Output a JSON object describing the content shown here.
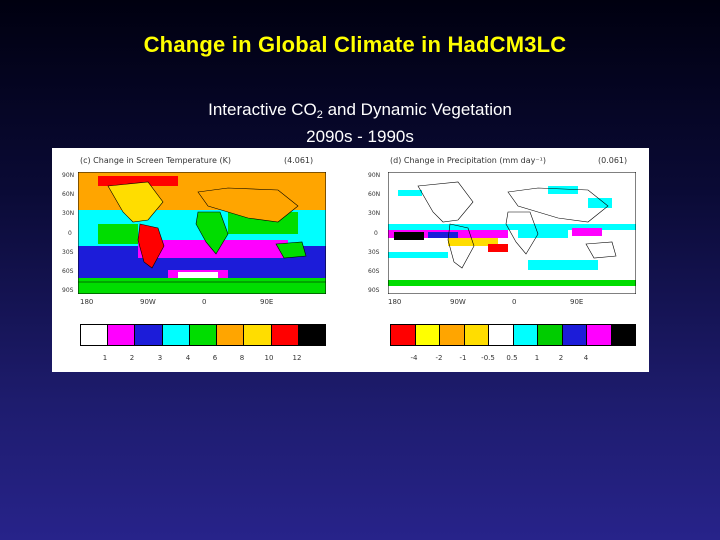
{
  "slide": {
    "title": "Change in Global Climate in HadCM3LC",
    "subtitle_pre": "Interactive CO",
    "subtitle_sub": "2",
    "subtitle_post": " and Dynamic Vegetation",
    "period": "2090s - 1990s"
  },
  "left_map": {
    "label": "(c) Change in Screen Temperature (K)",
    "mean": "(4.061)",
    "lat_ticks": [
      "90N",
      "60N",
      "30N",
      "0",
      "30S",
      "60S",
      "90S"
    ],
    "lon_ticks": [
      "180",
      "90W",
      "0",
      "90E"
    ],
    "colorbar": [
      "#ffffff",
      "#ff00ff",
      "#1c1cd9",
      "#00ffff",
      "#00dd00",
      "#ffa500",
      "#ffdd00",
      "#ff0000",
      "#000000"
    ],
    "colorbar_ticks": [
      "1",
      "2",
      "3",
      "4",
      "6",
      "8",
      "10",
      "12"
    ]
  },
  "right_map": {
    "label": "(d) Change in Precipitation (mm day⁻¹)",
    "mean": "(0.061)",
    "lat_ticks": [
      "90N",
      "60N",
      "30N",
      "0",
      "30S",
      "60S",
      "90S"
    ],
    "lon_ticks": [
      "180",
      "90W",
      "0",
      "90E"
    ],
    "colorbar": [
      "#ff0000",
      "#ffff00",
      "#ffa500",
      "#ffdd00",
      "#ffffff",
      "#00ffff",
      "#00cc00",
      "#1c1cd9",
      "#ff00ff",
      "#000000"
    ],
    "colorbar_ticks": [
      "-4",
      "-2",
      "-1",
      "-0.5",
      "0.5",
      "1",
      "2",
      "4"
    ]
  }
}
